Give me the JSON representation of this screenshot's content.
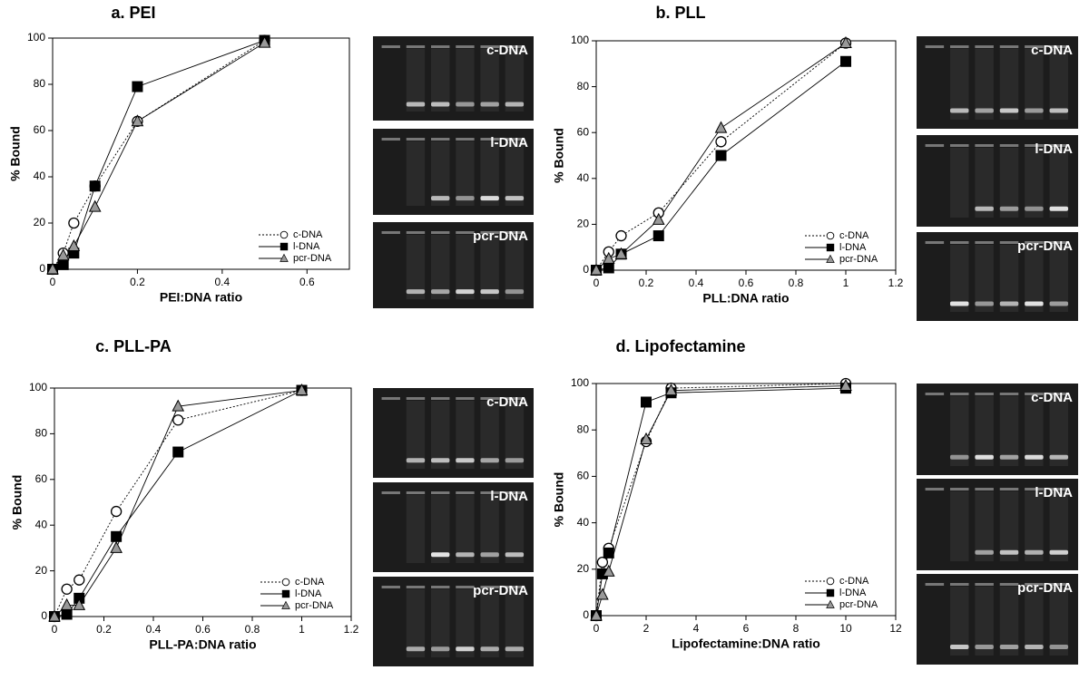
{
  "chart_data": [
    {
      "type": "line",
      "title": "a. PEI",
      "xlabel": "PEI:DNA ratio",
      "ylabel": "% Bound",
      "x": [
        0,
        0.025,
        0.05,
        0.1,
        0.2,
        0.5
      ],
      "xlim": [
        0,
        0.7
      ],
      "xticks": [
        0,
        0.2,
        0.4,
        0.6
      ],
      "ylim": [
        0,
        100
      ],
      "yticks": [
        0,
        20,
        40,
        60,
        80,
        100
      ],
      "legend": "lower right",
      "series": [
        {
          "name": "c-DNA",
          "color": "#000000",
          "marker": "circle",
          "marker_fill": "#ffffff",
          "dashed": true,
          "values": [
            0,
            7,
            20,
            36,
            64,
            99
          ]
        },
        {
          "name": "l-DNA",
          "color": "#000000",
          "marker": "square",
          "marker_fill": "#000000",
          "dashed": false,
          "values": [
            0,
            2,
            7,
            36,
            79,
            99
          ]
        },
        {
          "name": "pcr-DNA",
          "color": "#000000",
          "marker": "triangle",
          "marker_fill": "#999999",
          "dashed": false,
          "values": [
            0,
            6,
            10,
            27,
            64,
            98
          ]
        }
      ],
      "gel_labels": [
        "c-DNA",
        "l-DNA",
        "pcr-DNA"
      ]
    },
    {
      "type": "line",
      "title": "b. PLL",
      "xlabel": "PLL:DNA ratio",
      "ylabel": "% Bound",
      "x": [
        0,
        0.05,
        0.1,
        0.25,
        0.5,
        1
      ],
      "xlim": [
        0,
        1.2
      ],
      "xticks": [
        0,
        0.2,
        0.4,
        0.6,
        0.8,
        1,
        1.2
      ],
      "ylim": [
        0,
        100
      ],
      "yticks": [
        0,
        20,
        40,
        60,
        80,
        100
      ],
      "legend": "lower right",
      "series": [
        {
          "name": "c-DNA",
          "color": "#000000",
          "marker": "circle",
          "marker_fill": "#ffffff",
          "dashed": true,
          "values": [
            0,
            8,
            15,
            25,
            56,
            99
          ]
        },
        {
          "name": "l-DNA",
          "color": "#000000",
          "marker": "square",
          "marker_fill": "#000000",
          "dashed": false,
          "values": [
            0,
            1,
            7,
            15,
            50,
            91
          ]
        },
        {
          "name": "pcr-DNA",
          "color": "#000000",
          "marker": "triangle",
          "marker_fill": "#999999",
          "dashed": false,
          "values": [
            0,
            5,
            7,
            22,
            62,
            99
          ]
        }
      ],
      "gel_labels": [
        "c-DNA",
        "l-DNA",
        "pcr-DNA"
      ]
    },
    {
      "type": "line",
      "title": "c. PLL-PA",
      "xlabel": "PLL-PA:DNA ratio",
      "ylabel": "% Bound",
      "x": [
        0,
        0.05,
        0.1,
        0.25,
        0.5,
        1
      ],
      "xlim": [
        0,
        1.2
      ],
      "xticks": [
        0,
        0.2,
        0.4,
        0.6,
        0.8,
        1,
        1.2
      ],
      "ylim": [
        0,
        100
      ],
      "yticks": [
        0,
        20,
        40,
        60,
        80,
        100
      ],
      "legend": "lower right",
      "series": [
        {
          "name": "c-DNA",
          "color": "#000000",
          "marker": "circle",
          "marker_fill": "#ffffff",
          "dashed": true,
          "values": [
            0,
            12,
            16,
            46,
            86,
            99
          ]
        },
        {
          "name": "l-DNA",
          "color": "#000000",
          "marker": "square",
          "marker_fill": "#000000",
          "dashed": false,
          "values": [
            0,
            1,
            8,
            35,
            72,
            99
          ]
        },
        {
          "name": "pcr-DNA",
          "color": "#000000",
          "marker": "triangle",
          "marker_fill": "#999999",
          "dashed": false,
          "values": [
            0,
            5,
            5,
            30,
            92,
            99
          ]
        }
      ],
      "gel_labels": [
        "c-DNA",
        "l-DNA",
        "pcr-DNA"
      ]
    },
    {
      "type": "line",
      "title": "d. Lipofectamine",
      "xlabel": "Lipofectamine:DNA ratio",
      "ylabel": "% Bound",
      "x": [
        0,
        0.25,
        0.5,
        2,
        3,
        10
      ],
      "xlim": [
        0,
        12
      ],
      "xticks": [
        0,
        2,
        4,
        6,
        8,
        10,
        12
      ],
      "ylim": [
        0,
        100
      ],
      "yticks": [
        0,
        20,
        40,
        60,
        80,
        100
      ],
      "legend": "lower right",
      "series": [
        {
          "name": "c-DNA",
          "color": "#000000",
          "marker": "circle",
          "marker_fill": "#ffffff",
          "dashed": true,
          "values": [
            0,
            23,
            29,
            75,
            98,
            100
          ]
        },
        {
          "name": "l-DNA",
          "color": "#000000",
          "marker": "square",
          "marker_fill": "#000000",
          "dashed": false,
          "values": [
            0,
            18,
            27,
            92,
            96,
            98
          ]
        },
        {
          "name": "pcr-DNA",
          "color": "#000000",
          "marker": "triangle",
          "marker_fill": "#999999",
          "dashed": false,
          "values": [
            0,
            9,
            19,
            76,
            97,
            99
          ]
        }
      ],
      "gel_labels": [
        "c-DNA",
        "l-DNA",
        "pcr-DNA"
      ]
    }
  ]
}
